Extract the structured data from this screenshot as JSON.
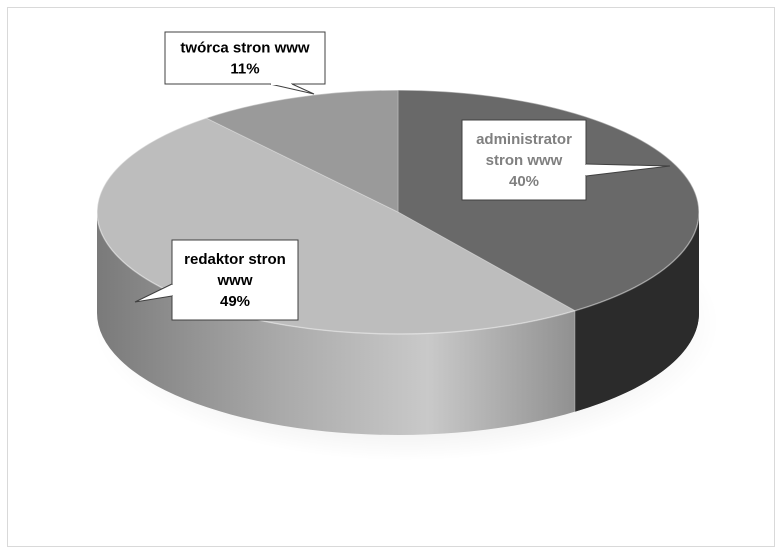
{
  "chart_data": {
    "type": "pie",
    "title": "",
    "slices": [
      {
        "label": "administrator stron www",
        "label_lines": [
          "administrator",
          "stron www"
        ],
        "value": 40,
        "value_label": "40%",
        "color": "#696969",
        "label_color": "#808080"
      },
      {
        "label": "redaktor stron www",
        "label_lines": [
          "redaktor stron",
          "www"
        ],
        "value": 49,
        "value_label": "49%",
        "color": "#bdbdbd",
        "label_color": "#000000"
      },
      {
        "label": "twórca stron www",
        "label_lines": [
          "twórca stron www"
        ],
        "value": 11,
        "value_label": "11%",
        "color": "#9a9a9a",
        "label_color": "#000000"
      }
    ],
    "legend": "none",
    "style": "3d-exploded-none"
  }
}
